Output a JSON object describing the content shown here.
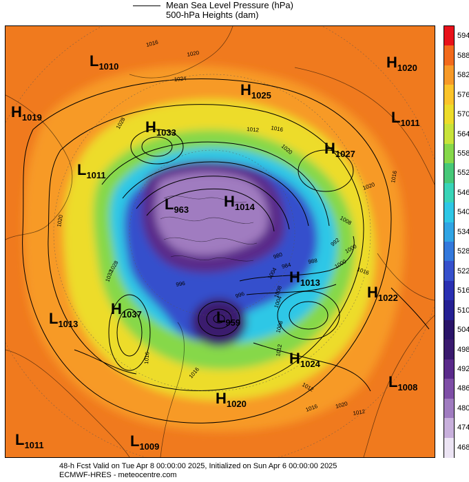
{
  "legend": {
    "line1": "Mean Sea Level Pressure (hPa)",
    "line2": "500-hPa Heights (dam)"
  },
  "footer": {
    "line1": "48-h Fcst Valid on Tue Apr  8 00:00:00 2025, Initialized on Sun Apr  6 00:00:00 2025",
    "line2": "ECMWF-HRES  - meteocentre.com"
  },
  "colorbar": {
    "labels": [
      "594",
      "588",
      "582",
      "576",
      "570",
      "564",
      "558",
      "552",
      "546",
      "540",
      "534",
      "528",
      "522",
      "516",
      "510",
      "504",
      "498",
      "492",
      "486",
      "480",
      "474",
      "468"
    ],
    "colors": [
      "#e8121a",
      "#f26a1c",
      "#f79a28",
      "#fbc42a",
      "#eddc2a",
      "#c8e33a",
      "#86d84a",
      "#46c878",
      "#38d4b8",
      "#2ec7e6",
      "#30a4e4",
      "#3378dc",
      "#3650cc",
      "#2a30b2",
      "#252093",
      "#2a1468",
      "#3a1a6e",
      "#5a2a8a",
      "#7e4ea6",
      "#a07cc0",
      "#c8b0dc",
      "#ece4f4"
    ]
  },
  "map": {
    "colors": {
      "ocean_orange": "#f07a1e",
      "ring_orange": "#f79a28",
      "yellow": "#eddc2a",
      "green": "#86d84a",
      "cyan": "#2ec7e6",
      "blue": "#3650cc",
      "purple": "#5a2a8a",
      "lilac": "#a07cc0",
      "contour": "#000000"
    },
    "pressure_centers": [
      {
        "type": "L",
        "value": "1010"
      },
      {
        "type": "H",
        "value": "1019"
      },
      {
        "type": "H",
        "value": "1033"
      },
      {
        "type": "H",
        "value": "1025"
      },
      {
        "type": "H",
        "value": "1020"
      },
      {
        "type": "L",
        "value": "1011"
      },
      {
        "type": "H",
        "value": "1027"
      },
      {
        "type": "L",
        "value": "1011"
      },
      {
        "type": "L",
        "value": "963"
      },
      {
        "type": "H",
        "value": "1014"
      },
      {
        "type": "H",
        "value": "1013"
      },
      {
        "type": "H",
        "value": "1022"
      },
      {
        "type": "L",
        "value": "1013"
      },
      {
        "type": "H",
        "value": "1037"
      },
      {
        "type": "L",
        "value": "959"
      },
      {
        "type": "H",
        "value": "1024"
      },
      {
        "type": "L",
        "value": "1008"
      },
      {
        "type": "H",
        "value": "1020"
      },
      {
        "type": "L",
        "value": "1011"
      },
      {
        "type": "L",
        "value": "1009"
      }
    ],
    "isobar_labels": [
      "1016",
      "1020",
      "1024",
      "1028",
      "1012",
      "1016",
      "1020",
      "1008",
      "1016",
      "1020",
      "1032",
      "1028",
      "1020",
      "1016",
      "1016",
      "1012",
      "1008",
      "1004",
      "1000",
      "996",
      "992",
      "988",
      "984",
      "980",
      "1000",
      "996",
      "1004",
      "1008",
      "1012",
      "1016",
      "1020",
      "1012",
      "1016"
    ]
  }
}
